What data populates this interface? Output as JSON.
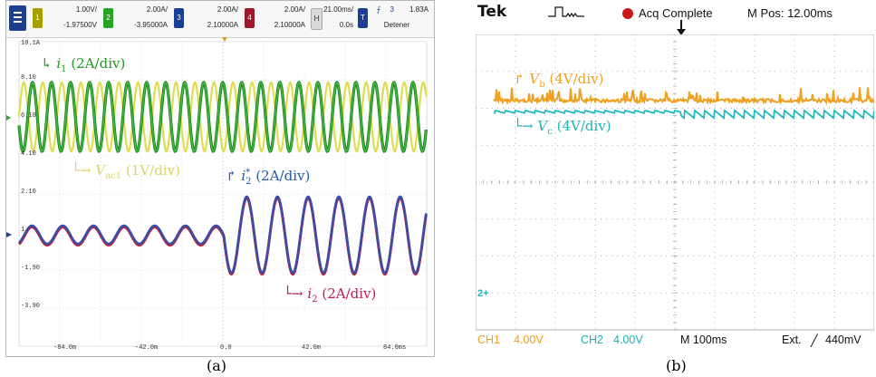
{
  "panel_a": {
    "caption": "(a)",
    "header": {
      "ch1": {
        "num": "1",
        "scale": "1.00V/",
        "offset": "-1.97500V",
        "color": "#b5b000"
      },
      "ch2": {
        "num": "2",
        "scale": "2.00A/",
        "offset": "-3.95000A",
        "color": "#2aa52a"
      },
      "ch3": {
        "num": "3",
        "scale": "2.00A/",
        "offset": "2.10000A",
        "color": "#1f4aa0"
      },
      "ch4": {
        "num": "4",
        "scale": "2.00A/",
        "offset": "2.10000A",
        "color": "#a01f30"
      },
      "timebase_btn": "H",
      "timebase": "21.00ms/",
      "delay": "0.0s",
      "trigger_btn": "T",
      "trigger_ch": "3",
      "trigger_level": "1.83A",
      "mode": "Detener"
    },
    "y_labels": [
      "10.1A",
      "8.10",
      "6.10",
      "4.10",
      "2.10",
      "1",
      "-1.90",
      "-3.90"
    ],
    "x_labels": [
      "-84.0m",
      "-42.0m",
      "0.0",
      "42.0m",
      "84.0ms"
    ],
    "annotations": {
      "i1": {
        "sym": "i",
        "sub": "1",
        "scale": "(2A/div)",
        "color": "#1f9a1f"
      },
      "vac": {
        "sym": "V",
        "sub": "ac1",
        "scale": "(1V/div)",
        "color": "#d8d25a"
      },
      "i2star": {
        "sym": "i",
        "sub": "2",
        "sup": "*",
        "scale": "(2A/div)",
        "color": "#1f5aa8"
      },
      "i2": {
        "sym": "i",
        "sub": "2",
        "scale": "(2A/div)",
        "color": "#c01850"
      }
    }
  },
  "panel_b": {
    "caption": "(b)",
    "brand": "Tek",
    "status": "Acq Complete",
    "mpos": "M Pos: 12.00ms",
    "footer": {
      "ch1": "CH1",
      "ch1_scale": "4.00V",
      "ch2": "CH2",
      "ch2_scale": "4.00V",
      "timebase": "M 100ms",
      "trigger": "Ext.",
      "trigger_level": "440mV"
    },
    "ground_marker": "2+",
    "annotations": {
      "vb": {
        "sym": "V",
        "sub": "b",
        "scale": "(4V/div)",
        "color": "#f0a020"
      },
      "vc": {
        "sym": "V",
        "sub": "c",
        "scale": "(4V/div)",
        "color": "#20b0b8"
      }
    }
  },
  "colors": {
    "ch1": "#dede50",
    "ch2": "#2ea62e",
    "ch3": "#1f3f9a",
    "ch4": "#c0203a",
    "tek_ch1": "#f0a020",
    "tek_ch2": "#20b8c0",
    "grid": "#9a9a9a"
  }
}
